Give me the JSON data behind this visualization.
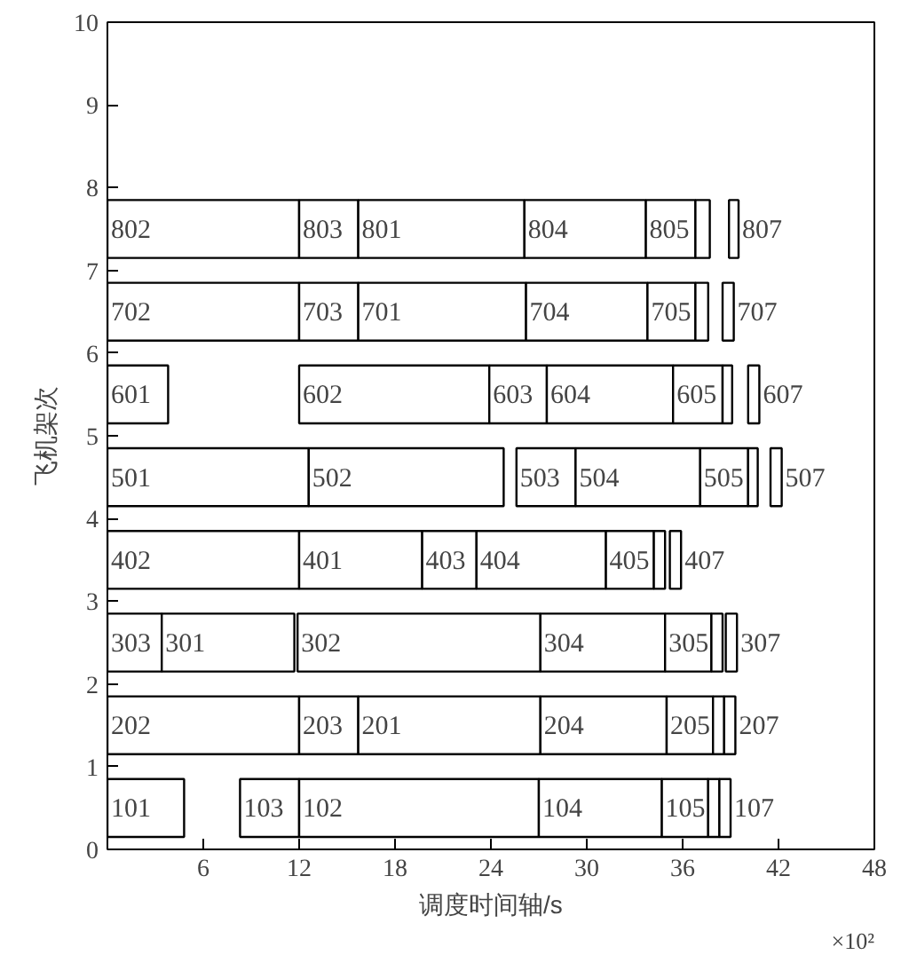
{
  "chart_data": {
    "type": "bar",
    "orientation": "horizontal",
    "xlabel": "调度时间轴/s",
    "ylabel": "飞机架次",
    "xlim": [
      0,
      48
    ],
    "xticks": [
      6,
      12,
      18,
      24,
      30,
      36,
      42,
      48
    ],
    "ylim": [
      0,
      10
    ],
    "yticks": [
      0,
      1,
      2,
      3,
      4,
      5,
      6,
      7,
      8,
      9,
      10
    ],
    "grid": false,
    "x": [
      0.5,
      1.5,
      2.5,
      3.5,
      4.5,
      5.5,
      6.5,
      7.5
    ],
    "series": [
      {
        "color": "#ffffff",
        "base": [
          0,
          0,
          0,
          0,
          0,
          0,
          0,
          0
        ],
        "values": [
          4.8,
          12,
          3.4,
          12,
          12.6,
          3.8,
          12,
          12
        ]
      },
      {
        "color": "#ffffff",
        "base": [
          8.3,
          12,
          3.4,
          12,
          12.6,
          12,
          12,
          12
        ],
        "values": [
          3.7,
          3.7,
          8.3,
          7.7,
          12.2,
          11.9,
          3.7,
          3.7
        ]
      },
      {
        "color": "#ffffff",
        "base": [
          12,
          15.7,
          11.9,
          19.7,
          25.6,
          23.9,
          15.7,
          15.7
        ],
        "values": [
          15,
          11.4,
          15.2,
          3.4,
          3.7,
          3.6,
          10.5,
          10.4
        ]
      },
      {
        "color": "#ffffff",
        "base": [
          27,
          27.1,
          27.1,
          23.1,
          29.3,
          27.5,
          26.2,
          26.1
        ],
        "values": [
          7.7,
          7.9,
          7.8,
          8.1,
          7.8,
          7.9,
          7.6,
          7.6
        ]
      },
      {
        "color": "#ffffff",
        "base": [
          34.7,
          35,
          34.9,
          31.2,
          37.1,
          35.4,
          33.8,
          33.7
        ],
        "values": [
          2.9,
          2.9,
          2.9,
          3,
          3,
          3.1,
          3,
          3.1
        ]
      },
      {
        "color": "#ffffff",
        "base": [
          37.6,
          37.9,
          37.8,
          34.2,
          40.1,
          38.5,
          36.8,
          36.8
        ],
        "values": [
          0.7,
          0.7,
          0.7,
          0.7,
          0.6,
          0.6,
          0.8,
          0.9
        ]
      },
      {
        "color": "#ffffff",
        "base": [
          38.3,
          38.6,
          38.7,
          35.2,
          41.5,
          40.1,
          38.5,
          38.9
        ],
        "values": [
          0.7,
          0.7,
          0.7,
          0.7,
          0.7,
          0.7,
          0.7,
          0.6
        ]
      }
    ],
    "annotations": [
      {
        "text": "101",
        "x": 0,
        "y": 0.5
      },
      {
        "text": "103",
        "x": 8.3,
        "y": 0.5
      },
      {
        "text": "102",
        "x": 12,
        "y": 0.5
      },
      {
        "text": "104",
        "x": 27,
        "y": 0.5
      },
      {
        "text": "105",
        "x": 34.7,
        "y": 0.5
      },
      {
        "text": "107",
        "x": 39,
        "y": 0.5
      },
      {
        "text": "202",
        "x": 0,
        "y": 1.5
      },
      {
        "text": "203",
        "x": 12,
        "y": 1.5
      },
      {
        "text": "201",
        "x": 15.7,
        "y": 1.5
      },
      {
        "text": "204",
        "x": 27.1,
        "y": 1.5
      },
      {
        "text": "205",
        "x": 35,
        "y": 1.5
      },
      {
        "text": "207",
        "x": 39.3,
        "y": 1.5
      },
      {
        "text": "303",
        "x": 0,
        "y": 2.5
      },
      {
        "text": "301",
        "x": 3.4,
        "y": 2.5
      },
      {
        "text": "302",
        "x": 11.9,
        "y": 2.5
      },
      {
        "text": "304",
        "x": 27.1,
        "y": 2.5
      },
      {
        "text": "305",
        "x": 34.9,
        "y": 2.5
      },
      {
        "text": "307",
        "x": 39.4,
        "y": 2.5
      },
      {
        "text": "402",
        "x": 0,
        "y": 3.5
      },
      {
        "text": "401",
        "x": 12,
        "y": 3.5
      },
      {
        "text": "403",
        "x": 19.7,
        "y": 3.5
      },
      {
        "text": "404",
        "x": 23.1,
        "y": 3.5
      },
      {
        "text": "405",
        "x": 31.2,
        "y": 3.5
      },
      {
        "text": "407",
        "x": 35.9,
        "y": 3.5
      },
      {
        "text": "501",
        "x": 0,
        "y": 4.5
      },
      {
        "text": "502",
        "x": 12.6,
        "y": 4.5
      },
      {
        "text": "503",
        "x": 25.6,
        "y": 4.5
      },
      {
        "text": "504",
        "x": 29.3,
        "y": 4.5
      },
      {
        "text": "505",
        "x": 37.1,
        "y": 4.5
      },
      {
        "text": "507",
        "x": 42.2,
        "y": 4.5
      },
      {
        "text": "601",
        "x": 0,
        "y": 5.5
      },
      {
        "text": "602",
        "x": 12,
        "y": 5.5
      },
      {
        "text": "603",
        "x": 23.9,
        "y": 5.5
      },
      {
        "text": "604",
        "x": 27.5,
        "y": 5.5
      },
      {
        "text": "605",
        "x": 35.4,
        "y": 5.5
      },
      {
        "text": "607",
        "x": 40.8,
        "y": 5.5
      },
      {
        "text": "702",
        "x": 0,
        "y": 6.5
      },
      {
        "text": "703",
        "x": 12,
        "y": 6.5
      },
      {
        "text": "701",
        "x": 15.7,
        "y": 6.5
      },
      {
        "text": "704",
        "x": 26.2,
        "y": 6.5
      },
      {
        "text": "705",
        "x": 33.8,
        "y": 6.5
      },
      {
        "text": "707",
        "x": 39.2,
        "y": 6.5
      },
      {
        "text": "802",
        "x": 0,
        "y": 7.5
      },
      {
        "text": "803",
        "x": 12,
        "y": 7.5
      },
      {
        "text": "801",
        "x": 15.7,
        "y": 7.5
      },
      {
        "text": "804",
        "x": 26.1,
        "y": 7.5
      },
      {
        "text": "805",
        "x": 33.7,
        "y": 7.5
      },
      {
        "text": "807",
        "x": 39.5,
        "y": 7.5
      },
      "×10²"
    ]
  }
}
